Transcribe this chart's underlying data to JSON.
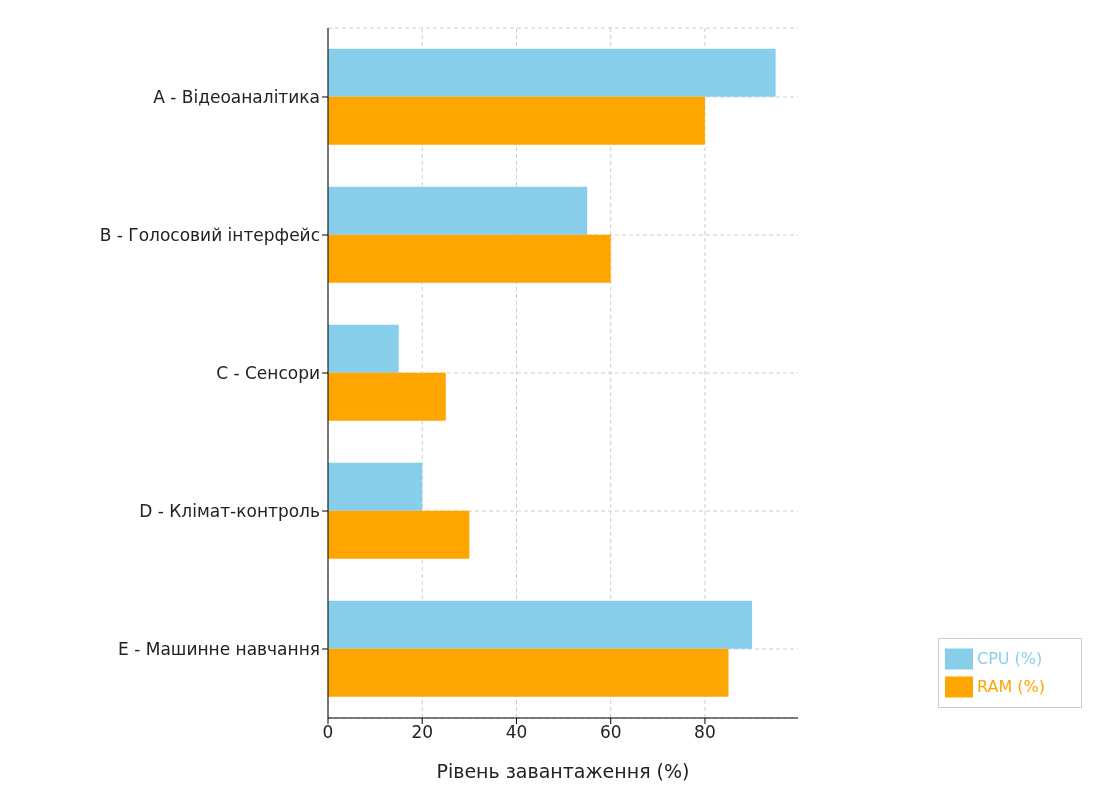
{
  "chart_data": {
    "type": "bar",
    "orientation": "horizontal",
    "categories": [
      "A - Відеоаналітика",
      "B - Голосовий інтерфейс",
      "C - Сенсори",
      "D - Клімат-контроль",
      "E - Машинне навчання"
    ],
    "series": [
      {
        "name": "CPU (%)",
        "color": "#87ceeb",
        "values": [
          95,
          55,
          15,
          20,
          90
        ]
      },
      {
        "name": "RAM (%)",
        "color": "#ffa500",
        "values": [
          80,
          60,
          25,
          30,
          85
        ]
      }
    ],
    "xlabel": "Рівень завантаження (%)",
    "xlim": [
      0,
      99.75
    ],
    "xticks": [
      0,
      20,
      40,
      60,
      80
    ],
    "grid": true,
    "legend": "bottom right"
  }
}
